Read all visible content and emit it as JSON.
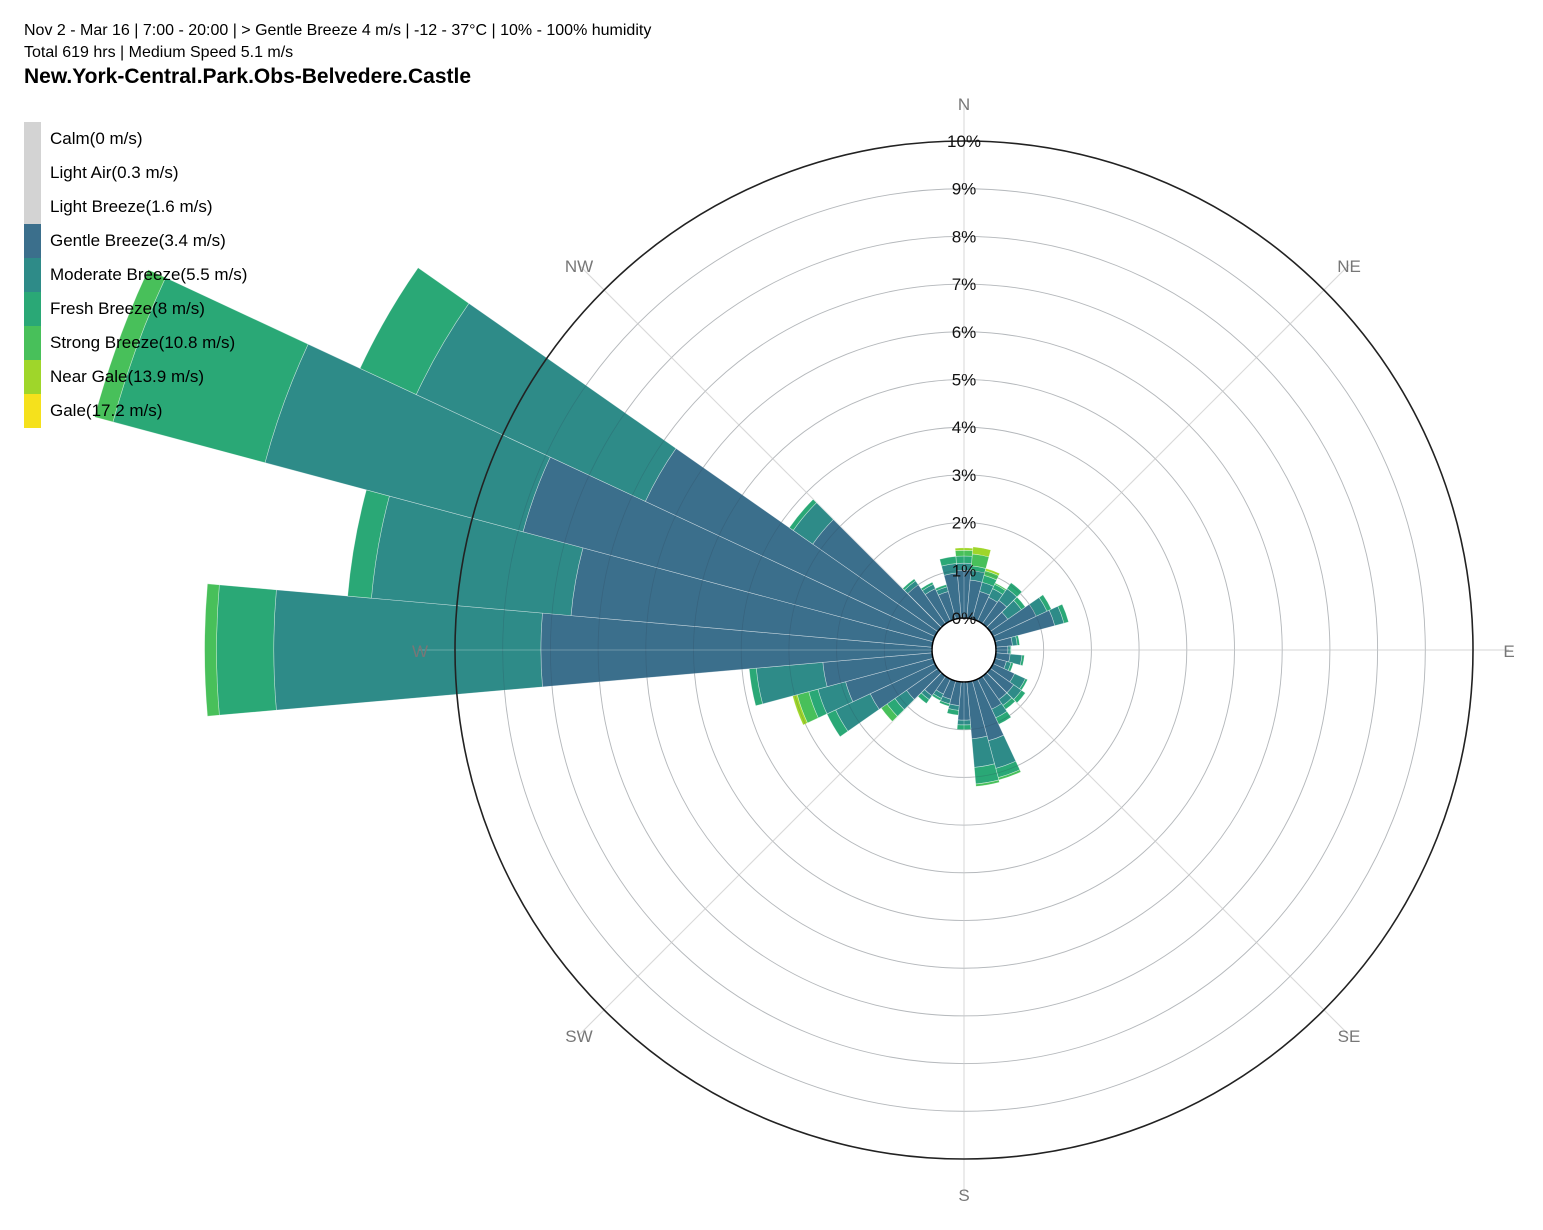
{
  "header": {
    "subtitle_line1": "Nov 2 - Mar 16 | 7:00 - 20:00 | > Gentle Breeze 4 m/s | -12 - 37°C | 10% - 100% humidity",
    "subtitle_line2": "Total 619 hrs | Medium Speed 5.1 m/s",
    "title": "New.York-Central.Park.Obs-Belvedere.Castle"
  },
  "legend": [
    {
      "label": "Calm(0 m/s)",
      "color": "#d3d3d3"
    },
    {
      "label": "Light Air(0.3 m/s)",
      "color": "#d3d3d3"
    },
    {
      "label": "Light Breeze(1.6 m/s)",
      "color": "#d3d3d3"
    },
    {
      "label": "Gentle Breeze(3.4 m/s)",
      "color": "#3b6f8c"
    },
    {
      "label": "Moderate Breeze(5.5 m/s)",
      "color": "#2e8b88"
    },
    {
      "label": "Fresh Breeze(8 m/s)",
      "color": "#2aa876"
    },
    {
      "label": "Strong Breeze(10.8 m/s)",
      "color": "#48c05a"
    },
    {
      "label": "Near Gale(13.9 m/s)",
      "color": "#9fd62a"
    },
    {
      "label": "Gale(17.2 m/s)",
      "color": "#f5e11c"
    }
  ],
  "chart_data": {
    "type": "wind-rose",
    "directions": [
      "N",
      "NE",
      "E",
      "SE",
      "S",
      "SW",
      "W",
      "NW"
    ],
    "radial_labels": [
      "0%",
      "1%",
      "2%",
      "3%",
      "4%",
      "5%",
      "6%",
      "7%",
      "8%",
      "9%",
      "10%"
    ],
    "rlim": [
      0,
      10
    ],
    "sector_count": 36,
    "unit": "%",
    "series": [
      {
        "name": "Gentle Breeze(3.4 m/s)",
        "color": "#3b6f8c"
      },
      {
        "name": "Moderate Breeze(5.5 m/s)",
        "color": "#2e8b88"
      },
      {
        "name": "Fresh Breeze(8 m/s)",
        "color": "#2aa876"
      },
      {
        "name": "Strong Breeze(10.8 m/s)",
        "color": "#48c05a"
      },
      {
        "name": "Near Gale(13.9 m/s)",
        "color": "#9fd62a"
      },
      {
        "name": "Gale(17.2 m/s)",
        "color": "#f5e11c"
      }
    ],
    "sectors": [
      {
        "angle": 0,
        "cumulative": [
          1.0,
          1.15,
          1.3,
          1.42,
          1.47,
          1.47
        ]
      },
      {
        "angle": 10,
        "cumulative": [
          0.8,
          1.0,
          1.1,
          1.35,
          1.5,
          1.5
        ]
      },
      {
        "angle": 20,
        "cumulative": [
          0.6,
          0.8,
          0.95,
          1.05,
          1.1,
          1.1
        ]
      },
      {
        "angle": 30,
        "cumulative": [
          0.55,
          0.75,
          0.85,
          0.88,
          0.88,
          0.88
        ]
      },
      {
        "angle": 40,
        "cumulative": [
          0.6,
          0.9,
          1.05,
          1.05,
          1.05,
          1.05
        ]
      },
      {
        "angle": 50,
        "cumulative": [
          0.45,
          0.8,
          0.9,
          0.9,
          0.9,
          0.9
        ]
      },
      {
        "angle": 60,
        "cumulative": [
          1.0,
          1.25,
          1.35,
          1.35,
          1.35,
          1.35
        ]
      },
      {
        "angle": 70,
        "cumulative": [
          1.3,
          1.5,
          1.6,
          1.6,
          1.6,
          1.6
        ]
      },
      {
        "angle": 80,
        "cumulative": [
          0.35,
          0.45,
          0.5,
          0.5,
          0.5,
          0.5
        ]
      },
      {
        "angle": 90,
        "cumulative": [
          0.25,
          0.3,
          0.32,
          0.32,
          0.32,
          0.32
        ]
      },
      {
        "angle": 100,
        "cumulative": [
          0.3,
          0.55,
          0.6,
          0.6,
          0.6,
          0.6
        ]
      },
      {
        "angle": 110,
        "cumulative": [
          0.25,
          0.35,
          0.4,
          0.4,
          0.4,
          0.4
        ]
      },
      {
        "angle": 120,
        "cumulative": [
          0.5,
          0.75,
          0.8,
          0.8,
          0.8,
          0.8
        ]
      },
      {
        "angle": 130,
        "cumulative": [
          0.6,
          0.8,
          0.9,
          0.9,
          0.9,
          0.9
        ]
      },
      {
        "angle": 140,
        "cumulative": [
          0.6,
          0.75,
          0.85,
          0.85,
          0.85,
          0.85
        ]
      },
      {
        "angle": 150,
        "cumulative": [
          0.7,
          0.9,
          1.05,
          1.05,
          1.05,
          1.05
        ]
      },
      {
        "angle": 160,
        "cumulative": [
          1.3,
          1.9,
          2.1,
          2.15,
          2.15,
          2.15
        ]
      },
      {
        "angle": 170,
        "cumulative": [
          1.2,
          1.8,
          2.15,
          2.2,
          2.2,
          2.2
        ]
      },
      {
        "angle": 180,
        "cumulative": [
          0.8,
          0.9,
          1.0,
          1.0,
          1.0,
          1.0
        ]
      },
      {
        "angle": 190,
        "cumulative": [
          0.5,
          0.6,
          0.7,
          0.7,
          0.7,
          0.7
        ]
      },
      {
        "angle": 200,
        "cumulative": [
          0.4,
          0.5,
          0.55,
          0.55,
          0.55,
          0.55
        ]
      },
      {
        "angle": 210,
        "cumulative": [
          0.35,
          0.45,
          0.5,
          0.5,
          0.5,
          0.5
        ]
      },
      {
        "angle": 220,
        "cumulative": [
          0.5,
          0.6,
          0.7,
          0.7,
          0.7,
          0.7
        ]
      },
      {
        "angle": 230,
        "cumulative": [
          0.8,
          1.1,
          1.3,
          1.45,
          1.45,
          1.45
        ]
      },
      {
        "angle": 240,
        "cumulative": [
          1.5,
          2.3,
          2.5,
          2.5,
          2.5,
          2.5
        ]
      },
      {
        "angle": 250,
        "cumulative": [
          1.9,
          2.5,
          2.7,
          2.95,
          3.05,
          3.05
        ]
      },
      {
        "angle": 260,
        "cumulative": [
          2.3,
          3.7,
          3.85,
          3.85,
          3.85,
          3.85
        ]
      },
      {
        "angle": 270,
        "cumulative": [
          8.2,
          13.8,
          15.0,
          15.25,
          15.25,
          15.25
        ]
      },
      {
        "angle": 280,
        "cumulative": [
          7.6,
          11.8,
          12.3,
          12.3,
          12.3,
          12.3
        ]
      },
      {
        "angle": 290,
        "cumulative": [
          8.9,
          14.5,
          17.8,
          18.2,
          18.2,
          18.2
        ]
      },
      {
        "angle": 300,
        "cumulative": [
          6.7,
          12.0,
          13.3,
          13.3,
          13.3,
          13.3
        ]
      },
      {
        "angle": 310,
        "cumulative": [
          3.2,
          3.7,
          3.8,
          3.8,
          3.8,
          3.8
        ]
      },
      {
        "angle": 320,
        "cumulative": [
          1.0,
          1.1,
          1.15,
          1.15,
          1.15,
          1.15
        ]
      },
      {
        "angle": 330,
        "cumulative": [
          0.75,
          0.85,
          0.9,
          0.9,
          0.9,
          0.9
        ]
      },
      {
        "angle": 340,
        "cumulative": [
          0.6,
          0.7,
          0.75,
          0.75,
          0.75,
          0.75
        ]
      },
      {
        "angle": 350,
        "cumulative": [
          0.95,
          1.15,
          1.3,
          1.3,
          1.3,
          1.3
        ]
      }
    ]
  }
}
